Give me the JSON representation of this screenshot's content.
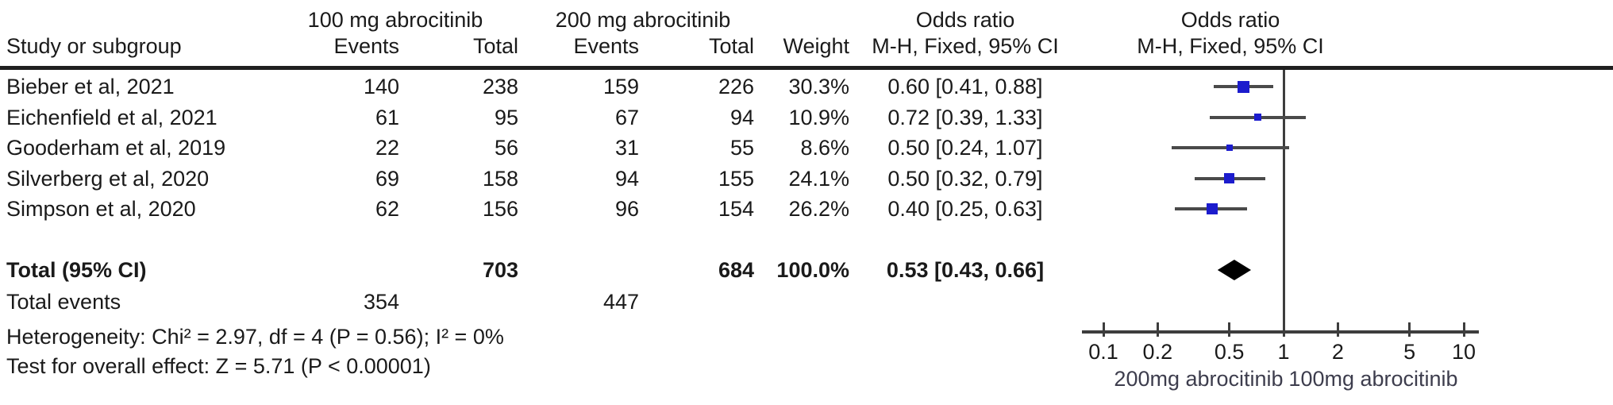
{
  "colors": {
    "marker_blue": "#1c1ccd",
    "ci_line": "#4a4a4a",
    "axis": "#3d3d3d",
    "diamond": "#000000",
    "text": "#1a1a1a"
  },
  "table": {
    "group1_header": "100 mg abrocitinib",
    "group2_header": "200 mg abrocitinib",
    "or_header_line1": "Odds ratio",
    "or_header_line2": "M-H, Fixed, 95% CI",
    "plot_header_line1": "Odds ratio",
    "plot_header_line2": "M-H, Fixed, 95% CI",
    "col_headers": {
      "study": "Study or subgroup",
      "events": "Events",
      "total": "Total",
      "weight": "Weight"
    },
    "rows": [
      {
        "study": "Bieber et al, 2021",
        "events1": "140",
        "total1": "238",
        "events2": "159",
        "total2": "226",
        "weight": "30.3%",
        "or_text": "0.60 [0.41, 0.88]"
      },
      {
        "study": "Eichenfield et al, 2021",
        "events1": "61",
        "total1": "95",
        "events2": "67",
        "total2": "94",
        "weight": "10.9%",
        "or_text": "0.72 [0.39, 1.33]"
      },
      {
        "study": "Gooderham et al, 2019",
        "events1": "22",
        "total1": "56",
        "events2": "31",
        "total2": "55",
        "weight": "8.6%",
        "or_text": "0.50 [0.24, 1.07]"
      },
      {
        "study": "Silverberg et al, 2020",
        "events1": "69",
        "total1": "158",
        "events2": "94",
        "total2": "155",
        "weight": "24.1%",
        "or_text": "0.50 [0.32, 0.79]"
      },
      {
        "study": "Simpson et al, 2020",
        "events1": "62",
        "total1": "156",
        "events2": "96",
        "total2": "154",
        "weight": "26.2%",
        "or_text": "0.40 [0.25, 0.63]"
      }
    ],
    "total_row": {
      "label": "Total (95% CI)",
      "total1": "703",
      "total2": "684",
      "weight": "100.0%",
      "or_text": "0.53 [0.43, 0.66]"
    },
    "total_events": {
      "label": "Total events",
      "events1": "354",
      "events2": "447"
    },
    "heterogeneity": "Heterogeneity: Chi² = 2.97, df = 4 (P = 0.56); I² = 0%",
    "overall_effect": "Test for overall effect: Z = 5.71 (P < 0.00001)"
  },
  "chart_data": {
    "type": "forest",
    "x_scale": "log10",
    "x_range": [
      0.1,
      10
    ],
    "axis_ticks": [
      "0.1",
      "0.2",
      "0.5",
      "1",
      "2",
      "5",
      "10"
    ],
    "null_line": 1,
    "axis_label_left": "200mg abrocitinib",
    "axis_label_right": "100mg abrocitinib",
    "effect_measure": "Odds ratio (M-H, Fixed, 95% CI)",
    "studies": [
      {
        "name": "Bieber et al, 2021",
        "or": 0.6,
        "ci_low": 0.41,
        "ci_high": 0.88,
        "weight_pct": 30.3
      },
      {
        "name": "Eichenfield et al, 2021",
        "or": 0.72,
        "ci_low": 0.39,
        "ci_high": 1.33,
        "weight_pct": 10.9
      },
      {
        "name": "Gooderham et al, 2019",
        "or": 0.5,
        "ci_low": 0.24,
        "ci_high": 1.07,
        "weight_pct": 8.6
      },
      {
        "name": "Silverberg et al, 2020",
        "or": 0.5,
        "ci_low": 0.32,
        "ci_high": 0.79,
        "weight_pct": 24.1
      },
      {
        "name": "Simpson et al, 2020",
        "or": 0.4,
        "ci_low": 0.25,
        "ci_high": 0.63,
        "weight_pct": 26.2
      }
    ],
    "total": {
      "or": 0.53,
      "ci_low": 0.43,
      "ci_high": 0.66,
      "weight_pct": 100.0
    }
  }
}
